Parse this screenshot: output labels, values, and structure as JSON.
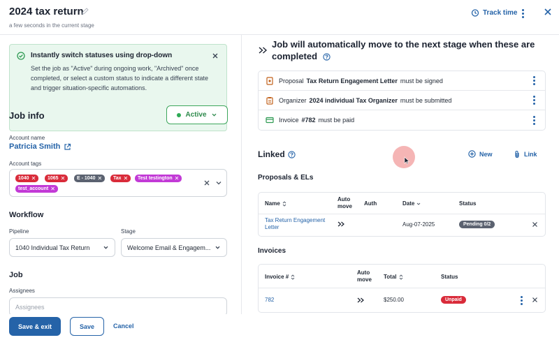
{
  "header": {
    "title": "2024 tax return",
    "subtitle": "a few seconds in the current stage",
    "track_time": "Track time"
  },
  "alert": {
    "title": "Instantly switch statuses using drop-down",
    "body": "Set the job as \"Active\" during ongoing work, \"Archived\" once completed, or select a custom status to indicate a different state and trigger situation-specific automations."
  },
  "job_info": {
    "title": "Job info",
    "status": "Active",
    "account_name_label": "Account name",
    "account_name": "Patricia Smith",
    "account_tags_label": "Account tags",
    "tags": [
      {
        "label": "1040",
        "color": "#d92b3a"
      },
      {
        "label": "1065",
        "color": "#d92b3a"
      },
      {
        "label": "E - 1040",
        "color": "#5b6270"
      },
      {
        "label": "Tax",
        "color": "#d92b3a"
      },
      {
        "label": "Test testington",
        "color": "#c23ad6"
      },
      {
        "label": "test_account",
        "color": "#c23ad6"
      }
    ]
  },
  "workflow": {
    "title": "Workflow",
    "pipeline_label": "Pipeline",
    "pipeline_value": "1040 Individual Tax Return",
    "stage_label": "Stage",
    "stage_value": "Welcome Email & Engagem..."
  },
  "job": {
    "title": "Job",
    "assignees_label": "Assignees",
    "assignees_placeholder": "Assignees"
  },
  "footer": {
    "save_exit": "Save & exit",
    "save": "Save",
    "cancel": "Cancel"
  },
  "automation": {
    "title": "Job will automatically move to the next stage when these are completed",
    "conditions": [
      {
        "prefix": "Proposal",
        "name": "Tax Return Engagement Letter",
        "suffix": "must be signed",
        "icon": "proposal-icon"
      },
      {
        "prefix": "Organizer",
        "name": "2024 individual Tax Organizer",
        "suffix": "must be submitted",
        "icon": "organizer-icon"
      },
      {
        "prefix": "Invoice",
        "name": "#782",
        "suffix": "must be paid",
        "icon": "invoice-icon"
      }
    ]
  },
  "linked": {
    "title": "Linked",
    "new": "New",
    "link": "Link",
    "proposals_title": "Proposals & ELs",
    "proposals_headers": {
      "name": "Name",
      "auto_move": "Auto move",
      "auth": "Auth",
      "date": "Date",
      "status": "Status"
    },
    "proposals_rows": [
      {
        "name": "Tax Return Engagement Letter",
        "date": "Aug-07-2025",
        "status": "Pending 0/2",
        "status_color": "#5b6270"
      }
    ],
    "invoices_title": "Invoices",
    "invoices_headers": {
      "number": "Invoice #",
      "auto_move": "Auto move",
      "total": "Total",
      "status": "Status"
    },
    "invoices_rows": [
      {
        "number": "782",
        "total": "$250.00",
        "status": "Unpaid",
        "status_color": "#d92b3a"
      }
    ]
  }
}
